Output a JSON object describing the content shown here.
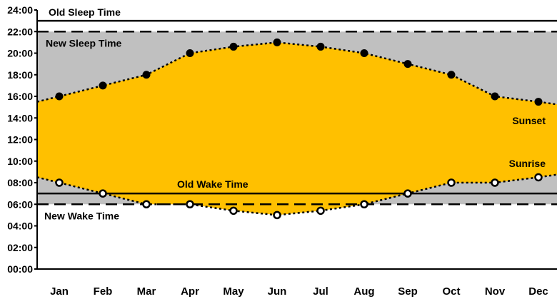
{
  "chart_data": {
    "type": "line",
    "categories": [
      "Jan",
      "Feb",
      "Mar",
      "Apr",
      "May",
      "Jun",
      "Jul",
      "Aug",
      "Sep",
      "Oct",
      "Nov",
      "Dec"
    ],
    "ylim": [
      0,
      24
    ],
    "y_ticks": [
      "00:00",
      "02:00",
      "04:00",
      "06:00",
      "08:00",
      "10:00",
      "12:00",
      "14:00",
      "16:00",
      "18:00",
      "20:00",
      "22:00",
      "24:00"
    ],
    "grid": false,
    "series": [
      {
        "name": "Sunset",
        "values": [
          16.0,
          17.0,
          18.0,
          20.0,
          20.6,
          21.0,
          20.6,
          20.0,
          19.0,
          18.0,
          16.0,
          15.5
        ],
        "marker": "filled-circle",
        "line": "dotted"
      },
      {
        "name": "Sunrise",
        "values": [
          8.0,
          7.0,
          6.0,
          6.0,
          5.4,
          5.0,
          5.4,
          6.0,
          7.0,
          8.0,
          8.0,
          8.5
        ],
        "marker": "open-circle",
        "line": "dotted"
      }
    ],
    "reference_lines": [
      {
        "label": "Old Sleep Time",
        "value": 23.0,
        "style": "solid"
      },
      {
        "label": "New Sleep Time",
        "value": 22.0,
        "style": "dashed"
      },
      {
        "label": "Old Wake Time",
        "value": 7.0,
        "style": "solid"
      },
      {
        "label": "New Wake Time",
        "value": 6.0,
        "style": "dashed"
      }
    ],
    "colors": {
      "daylight": "#FFC000",
      "awake_band": "#C0C0C0",
      "axis": "#000000"
    }
  }
}
